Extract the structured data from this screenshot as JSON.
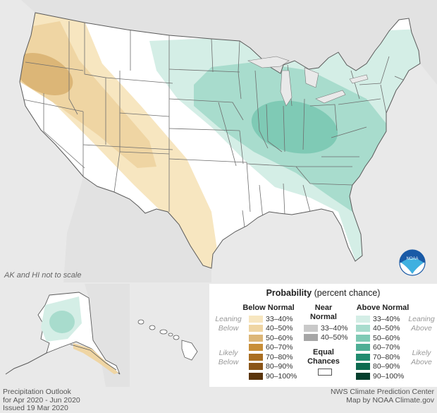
{
  "map": {
    "note": "AK and HI not to scale",
    "logo_text": "NOAA"
  },
  "legend": {
    "title_bold": "Probability",
    "title_rest": " (percent chance)",
    "below": {
      "heading": "Below Normal",
      "leaning": [
        "Leaning",
        "Below"
      ],
      "likely": [
        "Likely",
        "Below"
      ],
      "bins": [
        {
          "label": "33–40%",
          "color": "#f7e6c0"
        },
        {
          "label": "40–50%",
          "color": "#efd5a3"
        },
        {
          "label": "50–60%",
          "color": "#dcb677"
        },
        {
          "label": "60–70%",
          "color": "#c88e38"
        },
        {
          "label": "70–80%",
          "color": "#a96e22"
        },
        {
          "label": "80–90%",
          "color": "#8a5518"
        },
        {
          "label": "90–100%",
          "color": "#5a350d"
        }
      ]
    },
    "near": {
      "heading": [
        "Near",
        "Normal"
      ],
      "bins": [
        {
          "label": "33–40%",
          "color": "#c9c9c9"
        },
        {
          "label": "40–50%",
          "color": "#a6a6a6"
        }
      ]
    },
    "equal": {
      "label": [
        "Equal",
        "Chances"
      ],
      "color": "#ffffff"
    },
    "above": {
      "heading": "Above Normal",
      "leaning": [
        "Leaning",
        "Above"
      ],
      "likely": [
        "Likely",
        "Above"
      ],
      "bins": [
        {
          "label": "33–40%",
          "color": "#d4eee6"
        },
        {
          "label": "40–50%",
          "color": "#a8dccd"
        },
        {
          "label": "50–60%",
          "color": "#7fcab5"
        },
        {
          "label": "60–70%",
          "color": "#4eae95"
        },
        {
          "label": "70–80%",
          "color": "#218b6f"
        },
        {
          "label": "80–90%",
          "color": "#0d6a50"
        },
        {
          "label": "90–100%",
          "color": "#063f2e"
        }
      ]
    }
  },
  "footer": {
    "left": [
      "Precipitation Outlook",
      "for Apr 2020 - Jun 2020",
      "Issued 19 Mar 2020"
    ],
    "right": [
      "NWS Climate Prediction Center",
      "Map by NOAA Climate.gov"
    ]
  }
}
